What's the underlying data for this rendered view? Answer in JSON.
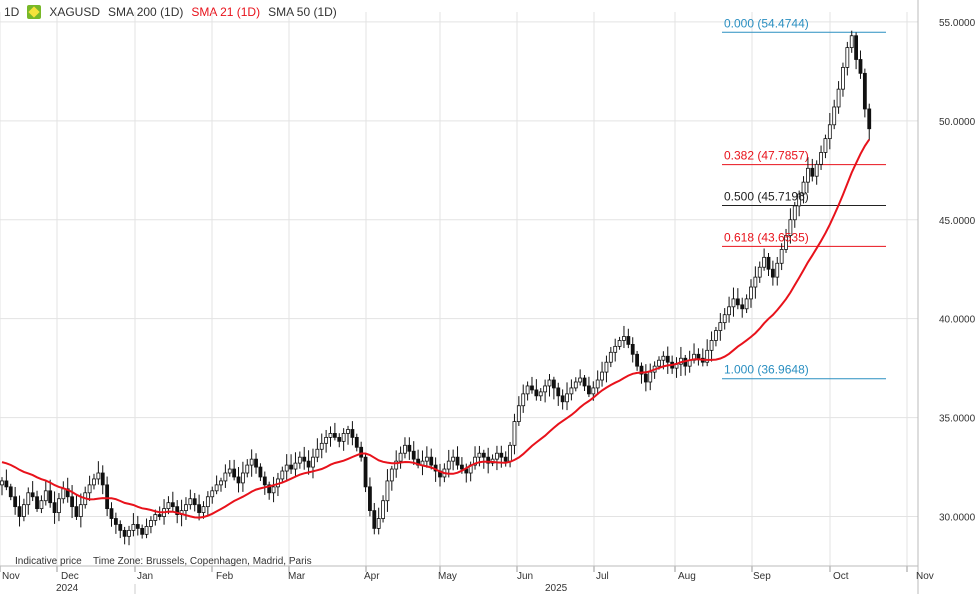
{
  "header": {
    "interval": "1D",
    "symbol": "XAGUSD",
    "indicators": [
      {
        "label": "SMA 200 (1D)",
        "color": "#555555"
      },
      {
        "label": "SMA 21 (1D)",
        "color": "#e8121b"
      },
      {
        "label": "SMA 50 (1D)",
        "color": "#555555"
      }
    ],
    "logo": "instrument-diamond-icon"
  },
  "footer": {
    "note": "Indicative price",
    "timezone": "Time Zone: Brussels, Copenhagen, Madrid, Paris"
  },
  "chart_data": {
    "type": "candlestick",
    "x_axis": {
      "months": [
        "Nov",
        "Dec",
        "Jan",
        "Feb",
        "Mar",
        "Apr",
        "May",
        "Jun",
        "Jul",
        "Aug",
        "Sep",
        "Oct",
        "Nov"
      ],
      "years": [
        "2024",
        "2025"
      ]
    },
    "y_axis": {
      "position": "right",
      "ticks": [
        "30.0000",
        "35.0000",
        "40.0000",
        "45.0000",
        "50.0000",
        "55.0000"
      ],
      "range": [
        27.5,
        55.5
      ]
    },
    "grid": true,
    "fibonacci": [
      {
        "label": "0.000 (54.4744)",
        "value": 54.4744,
        "color": "#2a8fc1"
      },
      {
        "label": "0.382 (47.7857)",
        "value": 47.7857,
        "color": "#e8121b"
      },
      {
        "label": "0.500 (45.7196)",
        "value": 45.7196,
        "color": "#222222"
      },
      {
        "label": "0.618 (43.6535)",
        "value": 43.6535,
        "color": "#e8121b"
      },
      {
        "label": "1.000 (36.9648)",
        "value": 36.9648,
        "color": "#2a8fc1"
      }
    ],
    "sma21_color": "#e8121b",
    "candle_color": "#111111",
    "closes": [
      31.8,
      31.5,
      31.0,
      30.5,
      30.0,
      30.6,
      31.2,
      31.0,
      30.4,
      30.8,
      31.3,
      30.7,
      30.2,
      30.9,
      31.4,
      31.0,
      30.5,
      30.0,
      30.6,
      31.2,
      31.6,
      31.9,
      32.2,
      31.6,
      30.4,
      29.9,
      29.6,
      29.3,
      29.0,
      29.3,
      29.6,
      29.4,
      29.1,
      29.5,
      29.8,
      30.1,
      30.0,
      30.4,
      30.7,
      30.5,
      30.1,
      30.3,
      30.6,
      30.9,
      30.6,
      30.2,
      30.5,
      31.0,
      31.3,
      31.6,
      31.8,
      32.2,
      32.4,
      32.0,
      31.7,
      32.2,
      32.6,
      32.9,
      32.5,
      32.0,
      31.6,
      31.2,
      31.5,
      31.9,
      32.3,
      32.6,
      32.4,
      32.7,
      33.0,
      32.8,
      32.5,
      33.0,
      33.4,
      33.7,
      34.0,
      34.2,
      34.0,
      33.8,
      34.2,
      34.4,
      34.0,
      33.5,
      33.0,
      31.5,
      30.3,
      29.4,
      29.9,
      30.8,
      31.8,
      32.4,
      32.8,
      33.2,
      33.6,
      33.3,
      32.9,
      32.6,
      32.8,
      33.0,
      32.6,
      32.3,
      32.0,
      32.4,
      32.8,
      33.0,
      32.6,
      32.4,
      32.2,
      32.6,
      33.0,
      33.2,
      33.0,
      32.7,
      32.9,
      33.2,
      33.0,
      32.8,
      33.6,
      34.8,
      35.6,
      36.2,
      36.6,
      36.4,
      36.1,
      36.3,
      36.6,
      36.9,
      36.5,
      36.1,
      35.8,
      36.2,
      36.5,
      36.8,
      37.0,
      36.6,
      36.2,
      36.5,
      36.9,
      37.3,
      37.8,
      38.3,
      38.6,
      38.9,
      39.1,
      38.7,
      38.2,
      37.6,
      37.2,
      36.8,
      37.3,
      37.6,
      37.9,
      38.1,
      37.8,
      37.5,
      37.7,
      38.0,
      37.6,
      37.9,
      38.2,
      38.0,
      37.8,
      38.4,
      38.9,
      39.4,
      39.8,
      40.2,
      40.6,
      41.0,
      40.7,
      40.5,
      41.0,
      41.6,
      42.1,
      42.6,
      43.1,
      42.5,
      42.1,
      42.8,
      43.5,
      44.2,
      45.0,
      45.7,
      46.3,
      46.9,
      47.6,
      47.2,
      47.8,
      48.4,
      49.1,
      49.8,
      50.7,
      51.6,
      52.7,
      53.7,
      54.3,
      53.1,
      52.4,
      50.6,
      49.6
    ]
  }
}
